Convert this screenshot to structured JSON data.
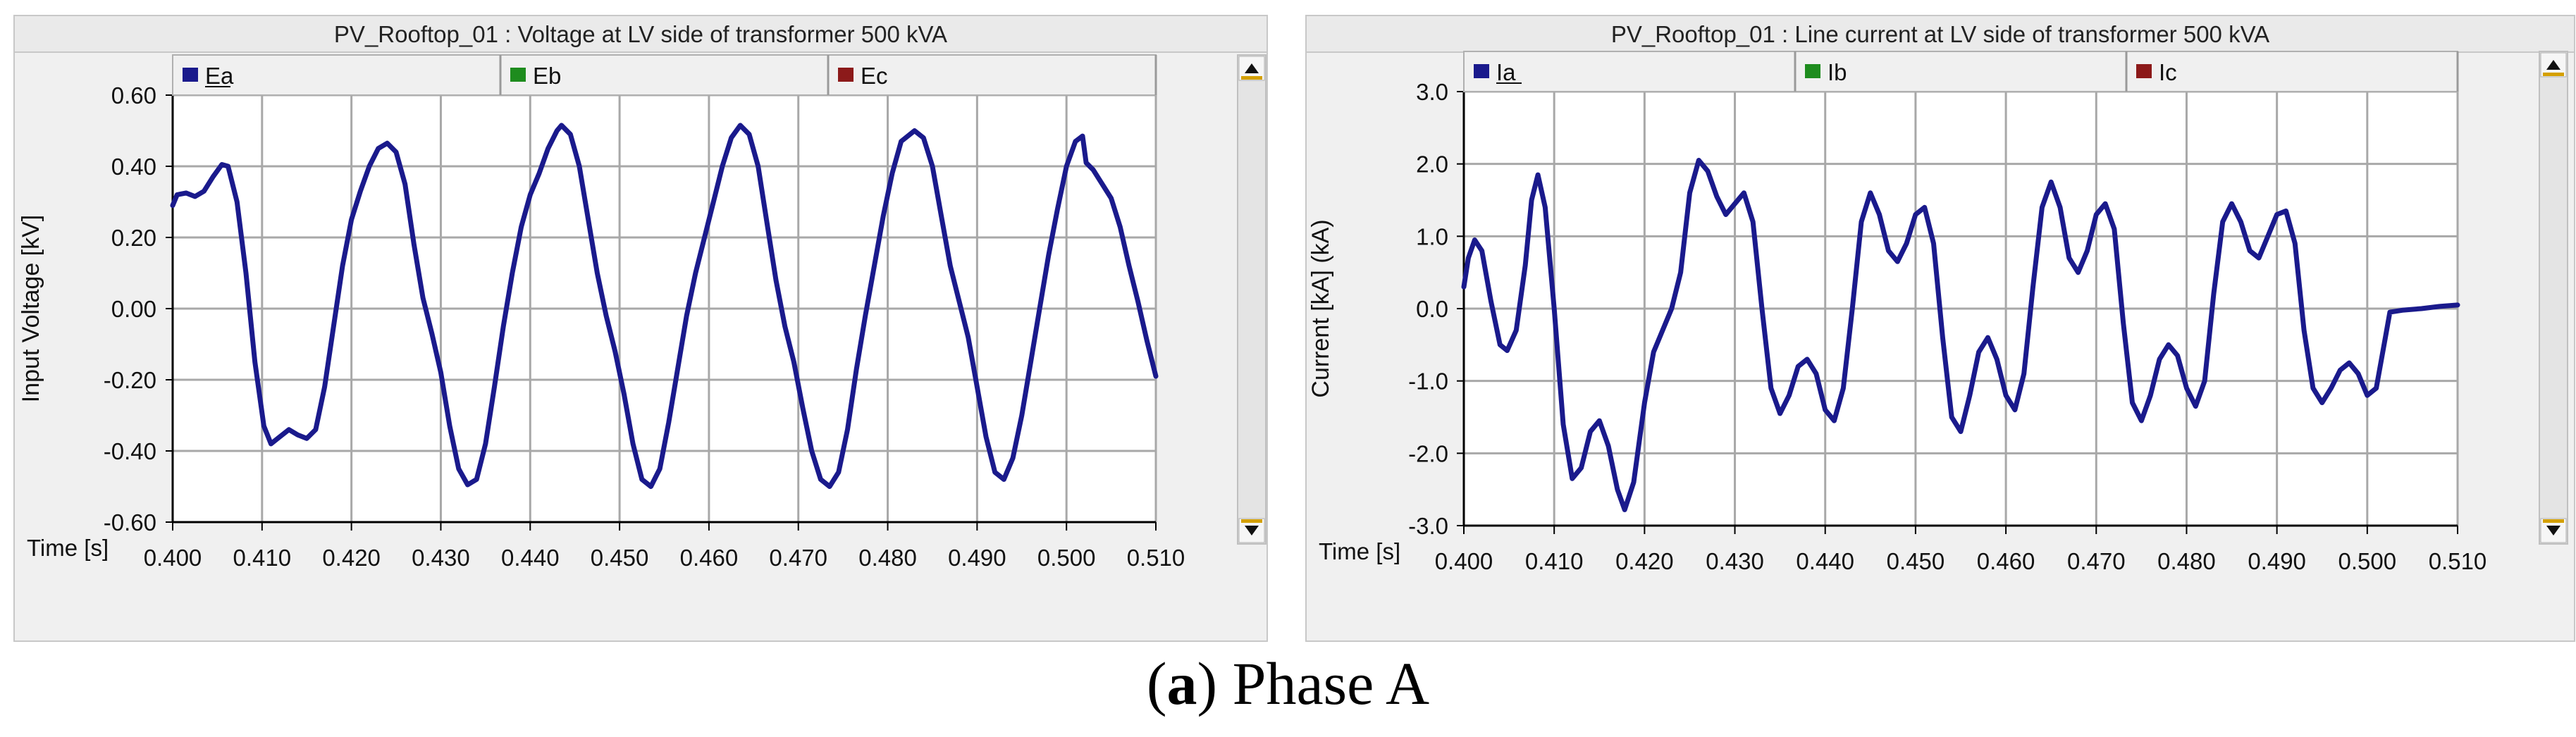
{
  "caption": {
    "label": "a",
    "text": "Phase A"
  },
  "chart_data": [
    {
      "type": "line",
      "title": "PV_Rooftop_01 : Voltage at LV side of transformer 500 kVA",
      "xlabel": "Time [s]",
      "ylabel": "Input Voltage [kV]",
      "xlim": [
        0.4,
        0.51
      ],
      "ylim": [
        -0.6,
        0.6
      ],
      "xticks": [
        0.4,
        0.41,
        0.42,
        0.43,
        0.44,
        0.45,
        0.46,
        0.47,
        0.48,
        0.49,
        0.5,
        0.51
      ],
      "xtick_labels": [
        "0.400",
        "0.410",
        "0.420",
        "0.430",
        "0.440",
        "0.450",
        "0.460",
        "0.470",
        "0.480",
        "0.490",
        "0.500",
        "0.510"
      ],
      "yticks": [
        0.6,
        0.4,
        0.2,
        0.0,
        -0.2,
        -0.4,
        -0.6
      ],
      "ytick_labels": [
        "0.60",
        "0.40",
        "0.20",
        "0.00",
        "-0.20",
        "-0.40",
        "-0.60"
      ],
      "legend": [
        {
          "name": "Ea",
          "color": "#1a1a8c"
        },
        {
          "name": "Eb",
          "color": "#1e8c1e"
        },
        {
          "name": "Ec",
          "color": "#8c1a1a"
        }
      ],
      "series": [
        {
          "name": "Ea",
          "color": "#1a1a8c",
          "points": [
            [
              0.4,
              0.29
            ],
            [
              0.4005,
              0.32
            ],
            [
              0.4015,
              0.325
            ],
            [
              0.4025,
              0.315
            ],
            [
              0.4035,
              0.33
            ],
            [
              0.4045,
              0.37
            ],
            [
              0.4055,
              0.405
            ],
            [
              0.4062,
              0.4
            ],
            [
              0.4072,
              0.3
            ],
            [
              0.4082,
              0.1
            ],
            [
              0.4092,
              -0.15
            ],
            [
              0.4102,
              -0.33
            ],
            [
              0.411,
              -0.38
            ],
            [
              0.412,
              -0.36
            ],
            [
              0.413,
              -0.34
            ],
            [
              0.414,
              -0.355
            ],
            [
              0.415,
              -0.365
            ],
            [
              0.416,
              -0.34
            ],
            [
              0.417,
              -0.22
            ],
            [
              0.418,
              -0.05
            ],
            [
              0.419,
              0.12
            ],
            [
              0.42,
              0.25
            ],
            [
              0.421,
              0.33
            ],
            [
              0.422,
              0.4
            ],
            [
              0.423,
              0.45
            ],
            [
              0.424,
              0.465
            ],
            [
              0.425,
              0.44
            ],
            [
              0.426,
              0.35
            ],
            [
              0.427,
              0.18
            ],
            [
              0.428,
              0.03
            ],
            [
              0.429,
              -0.07
            ],
            [
              0.43,
              -0.18
            ],
            [
              0.431,
              -0.33
            ],
            [
              0.432,
              -0.45
            ],
            [
              0.433,
              -0.495
            ],
            [
              0.434,
              -0.48
            ],
            [
              0.435,
              -0.38
            ],
            [
              0.436,
              -0.22
            ],
            [
              0.437,
              -0.05
            ],
            [
              0.438,
              0.1
            ],
            [
              0.439,
              0.23
            ],
            [
              0.44,
              0.32
            ],
            [
              0.441,
              0.38
            ],
            [
              0.442,
              0.45
            ],
            [
              0.443,
              0.5
            ],
            [
              0.4435,
              0.515
            ],
            [
              0.4445,
              0.49
            ],
            [
              0.4455,
              0.4
            ],
            [
              0.4465,
              0.25
            ],
            [
              0.4475,
              0.1
            ],
            [
              0.4485,
              -0.02
            ],
            [
              0.4495,
              -0.12
            ],
            [
              0.4505,
              -0.24
            ],
            [
              0.4515,
              -0.38
            ],
            [
              0.4525,
              -0.48
            ],
            [
              0.4535,
              -0.5
            ],
            [
              0.4545,
              -0.45
            ],
            [
              0.4555,
              -0.32
            ],
            [
              0.4565,
              -0.17
            ],
            [
              0.4575,
              -0.02
            ],
            [
              0.4585,
              0.1
            ],
            [
              0.4595,
              0.2
            ],
            [
              0.4605,
              0.3
            ],
            [
              0.4615,
              0.4
            ],
            [
              0.4625,
              0.48
            ],
            [
              0.4635,
              0.515
            ],
            [
              0.4645,
              0.49
            ],
            [
              0.4655,
              0.4
            ],
            [
              0.4665,
              0.24
            ],
            [
              0.4675,
              0.08
            ],
            [
              0.4685,
              -0.05
            ],
            [
              0.4695,
              -0.15
            ],
            [
              0.4705,
              -0.28
            ],
            [
              0.4715,
              -0.4
            ],
            [
              0.4725,
              -0.48
            ],
            [
              0.4735,
              -0.5
            ],
            [
              0.4745,
              -0.46
            ],
            [
              0.4755,
              -0.34
            ],
            [
              0.4765,
              -0.17
            ],
            [
              0.4775,
              -0.02
            ],
            [
              0.4785,
              0.12
            ],
            [
              0.4795,
              0.26
            ],
            [
              0.4805,
              0.38
            ],
            [
              0.4815,
              0.47
            ],
            [
              0.483,
              0.5
            ],
            [
              0.484,
              0.48
            ],
            [
              0.485,
              0.4
            ],
            [
              0.486,
              0.26
            ],
            [
              0.487,
              0.12
            ],
            [
              0.488,
              0.02
            ],
            [
              0.489,
              -0.08
            ],
            [
              0.49,
              -0.22
            ],
            [
              0.491,
              -0.36
            ],
            [
              0.492,
              -0.46
            ],
            [
              0.493,
              -0.48
            ],
            [
              0.494,
              -0.42
            ],
            [
              0.495,
              -0.3
            ],
            [
              0.496,
              -0.15
            ],
            [
              0.497,
              0.0
            ],
            [
              0.498,
              0.15
            ],
            [
              0.499,
              0.28
            ],
            [
              0.5,
              0.4
            ],
            [
              0.501,
              0.47
            ],
            [
              0.5018,
              0.485
            ],
            [
              0.5022,
              0.41
            ],
            [
              0.503,
              0.39
            ],
            [
              0.504,
              0.35
            ],
            [
              0.505,
              0.31
            ],
            [
              0.506,
              0.23
            ],
            [
              0.507,
              0.12
            ],
            [
              0.508,
              0.02
            ],
            [
              0.509,
              -0.09
            ],
            [
              0.51,
              -0.19
            ]
          ]
        }
      ]
    },
    {
      "type": "line",
      "title": "PV_Rooftop_01 : Line current at LV side of transformer 500 kVA",
      "xlabel": "Time [s]",
      "ylabel": "Current [kA] (kA)",
      "xlim": [
        0.4,
        0.51
      ],
      "ylim": [
        -3.0,
        3.0
      ],
      "xticks": [
        0.4,
        0.41,
        0.42,
        0.43,
        0.44,
        0.45,
        0.46,
        0.47,
        0.48,
        0.49,
        0.5,
        0.51
      ],
      "xtick_labels": [
        "0.400",
        "0.410",
        "0.420",
        "0.430",
        "0.440",
        "0.450",
        "0.460",
        "0.470",
        "0.480",
        "0.490",
        "0.500",
        "0.510"
      ],
      "yticks": [
        3.0,
        2.0,
        1.0,
        0.0,
        -1.0,
        -2.0,
        -3.0
      ],
      "ytick_labels": [
        "3.0",
        "2.0",
        "1.0",
        "0.0",
        "-1.0",
        "-2.0",
        "-3.0"
      ],
      "legend": [
        {
          "name": "Ia",
          "color": "#1a1a8c"
        },
        {
          "name": "Ib",
          "color": "#1e8c1e"
        },
        {
          "name": "Ic",
          "color": "#8c1a1a"
        }
      ],
      "series": [
        {
          "name": "Ia",
          "color": "#1a1a8c",
          "points": [
            [
              0.4,
              0.3
            ],
            [
              0.4005,
              0.7
            ],
            [
              0.4012,
              0.95
            ],
            [
              0.402,
              0.8
            ],
            [
              0.403,
              0.1
            ],
            [
              0.404,
              -0.5
            ],
            [
              0.4048,
              -0.58
            ],
            [
              0.4058,
              -0.3
            ],
            [
              0.4068,
              0.6
            ],
            [
              0.4075,
              1.5
            ],
            [
              0.4082,
              1.85
            ],
            [
              0.409,
              1.4
            ],
            [
              0.41,
              0.0
            ],
            [
              0.411,
              -1.6
            ],
            [
              0.412,
              -2.35
            ],
            [
              0.413,
              -2.2
            ],
            [
              0.414,
              -1.7
            ],
            [
              0.415,
              -1.55
            ],
            [
              0.416,
              -1.9
            ],
            [
              0.417,
              -2.5
            ],
            [
              0.4178,
              -2.78
            ],
            [
              0.4188,
              -2.4
            ],
            [
              0.42,
              -1.3
            ],
            [
              0.421,
              -0.6
            ],
            [
              0.422,
              -0.3
            ],
            [
              0.423,
              0.0
            ],
            [
              0.424,
              0.5
            ],
            [
              0.425,
              1.6
            ],
            [
              0.426,
              2.05
            ],
            [
              0.427,
              1.9
            ],
            [
              0.428,
              1.55
            ],
            [
              0.429,
              1.3
            ],
            [
              0.43,
              1.45
            ],
            [
              0.431,
              1.6
            ],
            [
              0.432,
              1.2
            ],
            [
              0.433,
              0.0
            ],
            [
              0.434,
              -1.1
            ],
            [
              0.435,
              -1.45
            ],
            [
              0.436,
              -1.2
            ],
            [
              0.437,
              -0.8
            ],
            [
              0.438,
              -0.7
            ],
            [
              0.439,
              -0.9
            ],
            [
              0.44,
              -1.4
            ],
            [
              0.441,
              -1.55
            ],
            [
              0.442,
              -1.1
            ],
            [
              0.443,
              0.0
            ],
            [
              0.444,
              1.2
            ],
            [
              0.445,
              1.6
            ],
            [
              0.446,
              1.3
            ],
            [
              0.447,
              0.8
            ],
            [
              0.448,
              0.65
            ],
            [
              0.449,
              0.9
            ],
            [
              0.45,
              1.3
            ],
            [
              0.451,
              1.4
            ],
            [
              0.452,
              0.9
            ],
            [
              0.453,
              -0.4
            ],
            [
              0.454,
              -1.5
            ],
            [
              0.455,
              -1.7
            ],
            [
              0.456,
              -1.2
            ],
            [
              0.457,
              -0.6
            ],
            [
              0.458,
              -0.4
            ],
            [
              0.459,
              -0.7
            ],
            [
              0.46,
              -1.2
            ],
            [
              0.461,
              -1.4
            ],
            [
              0.462,
              -0.9
            ],
            [
              0.463,
              0.3
            ],
            [
              0.464,
              1.4
            ],
            [
              0.465,
              1.75
            ],
            [
              0.466,
              1.4
            ],
            [
              0.467,
              0.7
            ],
            [
              0.468,
              0.5
            ],
            [
              0.469,
              0.8
            ],
            [
              0.47,
              1.3
            ],
            [
              0.471,
              1.45
            ],
            [
              0.472,
              1.1
            ],
            [
              0.473,
              -0.2
            ],
            [
              0.474,
              -1.3
            ],
            [
              0.475,
              -1.55
            ],
            [
              0.476,
              -1.2
            ],
            [
              0.477,
              -0.7
            ],
            [
              0.478,
              -0.5
            ],
            [
              0.479,
              -0.65
            ],
            [
              0.48,
              -1.1
            ],
            [
              0.481,
              -1.35
            ],
            [
              0.482,
              -1.0
            ],
            [
              0.483,
              0.2
            ],
            [
              0.484,
              1.2
            ],
            [
              0.485,
              1.45
            ],
            [
              0.486,
              1.2
            ],
            [
              0.487,
              0.8
            ],
            [
              0.488,
              0.7
            ],
            [
              0.489,
              1.0
            ],
            [
              0.49,
              1.3
            ],
            [
              0.491,
              1.35
            ],
            [
              0.492,
              0.9
            ],
            [
              0.493,
              -0.3
            ],
            [
              0.494,
              -1.1
            ],
            [
              0.495,
              -1.3
            ],
            [
              0.496,
              -1.1
            ],
            [
              0.497,
              -0.85
            ],
            [
              0.498,
              -0.75
            ],
            [
              0.499,
              -0.9
            ],
            [
              0.5,
              -1.2
            ],
            [
              0.501,
              -1.1
            ],
            [
              0.502,
              -0.4
            ],
            [
              0.5025,
              -0.05
            ],
            [
              0.504,
              -0.02
            ],
            [
              0.506,
              0.0
            ],
            [
              0.508,
              0.03
            ],
            [
              0.51,
              0.05
            ]
          ]
        }
      ]
    }
  ]
}
